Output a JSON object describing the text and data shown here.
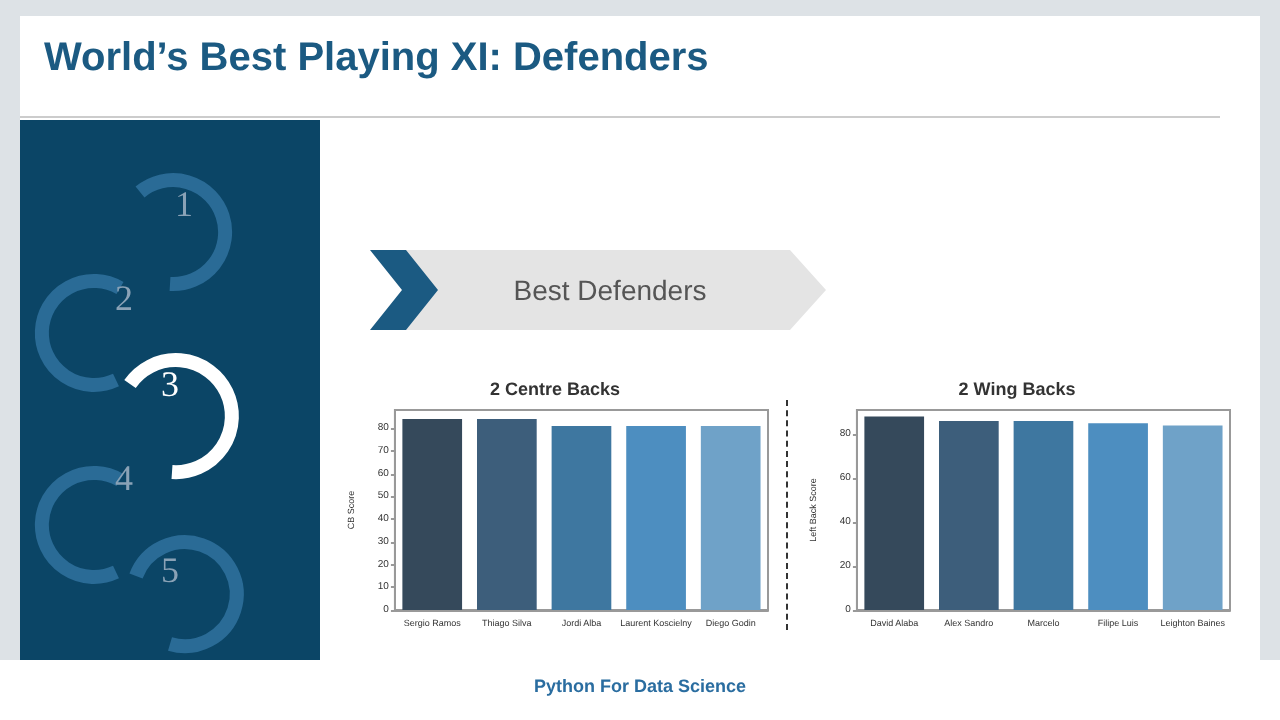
{
  "chart_data": [
    {
      "type": "other",
      "title": "World’s Best Playing XI: Defenders",
      "subtitle": "Best Defenders",
      "annotations": [
        "1",
        "2",
        "3",
        "4",
        "5",
        "Python For Data Science"
      ]
    },
    {
      "type": "bar",
      "title": "2 Centre Backs",
      "ylabel": "CB Score",
      "categories": [
        "Sergio Ramos",
        "Thiago Silva",
        "Jordi Alba",
        "Laurent Koscielny",
        "Diego Godin"
      ],
      "values": [
        84,
        84,
        81,
        81,
        81
      ],
      "colors": [
        "#35495b",
        "#3d5e7b",
        "#3e77a0",
        "#4d8ec0",
        "#6fa2c8"
      ],
      "ylim": [
        0,
        88
      ],
      "yticks": [
        0,
        10,
        20,
        30,
        40,
        50,
        60,
        70,
        80
      ],
      "grid": false
    },
    {
      "type": "bar",
      "title": "2 Wing Backs",
      "ylabel": "Left Back Score",
      "categories": [
        "David Alaba",
        "Alex Sandro",
        "Marcelo",
        "Filipe Luis",
        "Leighton Baines"
      ],
      "values": [
        88,
        86,
        86,
        85,
        84
      ],
      "colors": [
        "#35495b",
        "#3d5e7b",
        "#3e77a0",
        "#4d8ec0",
        "#6fa2c8"
      ],
      "ylim": [
        0,
        91
      ],
      "yticks": [
        0,
        20,
        40,
        60,
        80
      ],
      "grid": false
    }
  ]
}
